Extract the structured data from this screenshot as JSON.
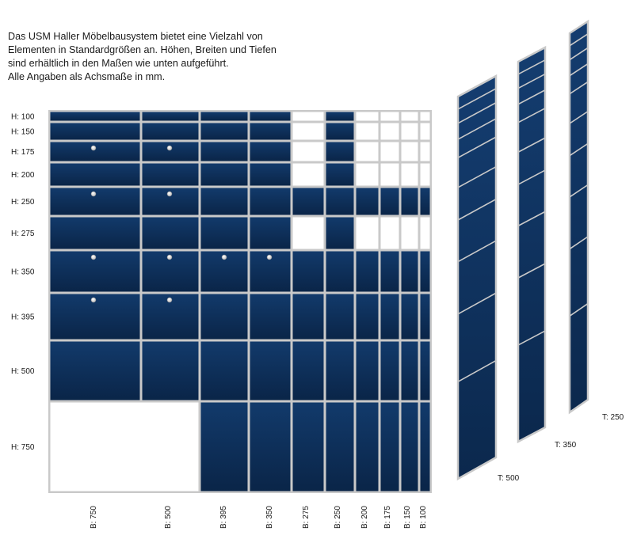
{
  "intro": {
    "lines": [
      "Das USM Haller Möbelbausystem bietet eine Vielzahl von",
      "Elementen in Standardgrößen an. Höhen, Breiten und Tiefen",
      "sind erhältlich in den Maßen wie unten aufgeführt.",
      "Alle Angaben als Achsmaße in mm."
    ]
  },
  "colors": {
    "panel": "#0e2f5a",
    "panel_dark": "#0a2447",
    "frame": "#c9c9c9",
    "empty": "#ffffff"
  },
  "grid": {
    "heights": [
      "H: 100",
      "H: 150",
      "H: 175",
      "H: 200",
      "H: 250",
      "H: 275",
      "H: 350",
      "H: 395",
      "H: 500",
      "H: 750"
    ],
    "height_values": [
      100,
      150,
      175,
      200,
      250,
      275,
      350,
      395,
      500,
      750
    ],
    "widths": [
      "B: 750",
      "B: 500",
      "B: 395",
      "B: 350",
      "B: 275",
      "B: 250",
      "B: 200",
      "B: 175",
      "B: 150",
      "B: 100"
    ],
    "width_values": [
      750,
      500,
      395,
      350,
      275,
      250,
      200,
      175,
      150,
      100
    ],
    "white_cells": [
      [
        0,
        4
      ],
      [
        0,
        6
      ],
      [
        0,
        7
      ],
      [
        0,
        8
      ],
      [
        0,
        9
      ],
      [
        1,
        4
      ],
      [
        1,
        6
      ],
      [
        1,
        7
      ],
      [
        1,
        8
      ],
      [
        1,
        9
      ],
      [
        2,
        4
      ],
      [
        2,
        6
      ],
      [
        2,
        7
      ],
      [
        2,
        8
      ],
      [
        2,
        9
      ],
      [
        3,
        4
      ],
      [
        3,
        6
      ],
      [
        3,
        7
      ],
      [
        3,
        8
      ],
      [
        3,
        9
      ],
      [
        5,
        4
      ],
      [
        5,
        6
      ],
      [
        5,
        7
      ],
      [
        5,
        8
      ],
      [
        5,
        9
      ]
    ],
    "merged_cells": [
      {
        "row": 0,
        "col": 0,
        "colspan": 2
      },
      {
        "row": 9,
        "col": 0,
        "colspan": 2,
        "white": true
      },
      {
        "row": 8,
        "col": 0,
        "colspan": 2
      }
    ],
    "knob_cells": [
      [
        2,
        0
      ],
      [
        2,
        1
      ],
      [
        4,
        0
      ],
      [
        4,
        1
      ],
      [
        6,
        0
      ],
      [
        6,
        1
      ],
      [
        6,
        2
      ],
      [
        6,
        3
      ],
      [
        7,
        0
      ],
      [
        7,
        1
      ]
    ]
  },
  "depth_panels": [
    {
      "label": "T: 500",
      "value": 500,
      "splits": [
        100,
        150,
        175,
        200,
        250,
        275,
        350,
        395,
        500
      ]
    },
    {
      "label": "T: 350",
      "value": 350,
      "splits": [
        100,
        150,
        175,
        200,
        250,
        275,
        350,
        395,
        500
      ]
    },
    {
      "label": "T: 250",
      "value": 250,
      "splits": [
        100,
        150,
        175,
        200,
        250,
        275,
        350,
        395,
        500
      ]
    }
  ]
}
